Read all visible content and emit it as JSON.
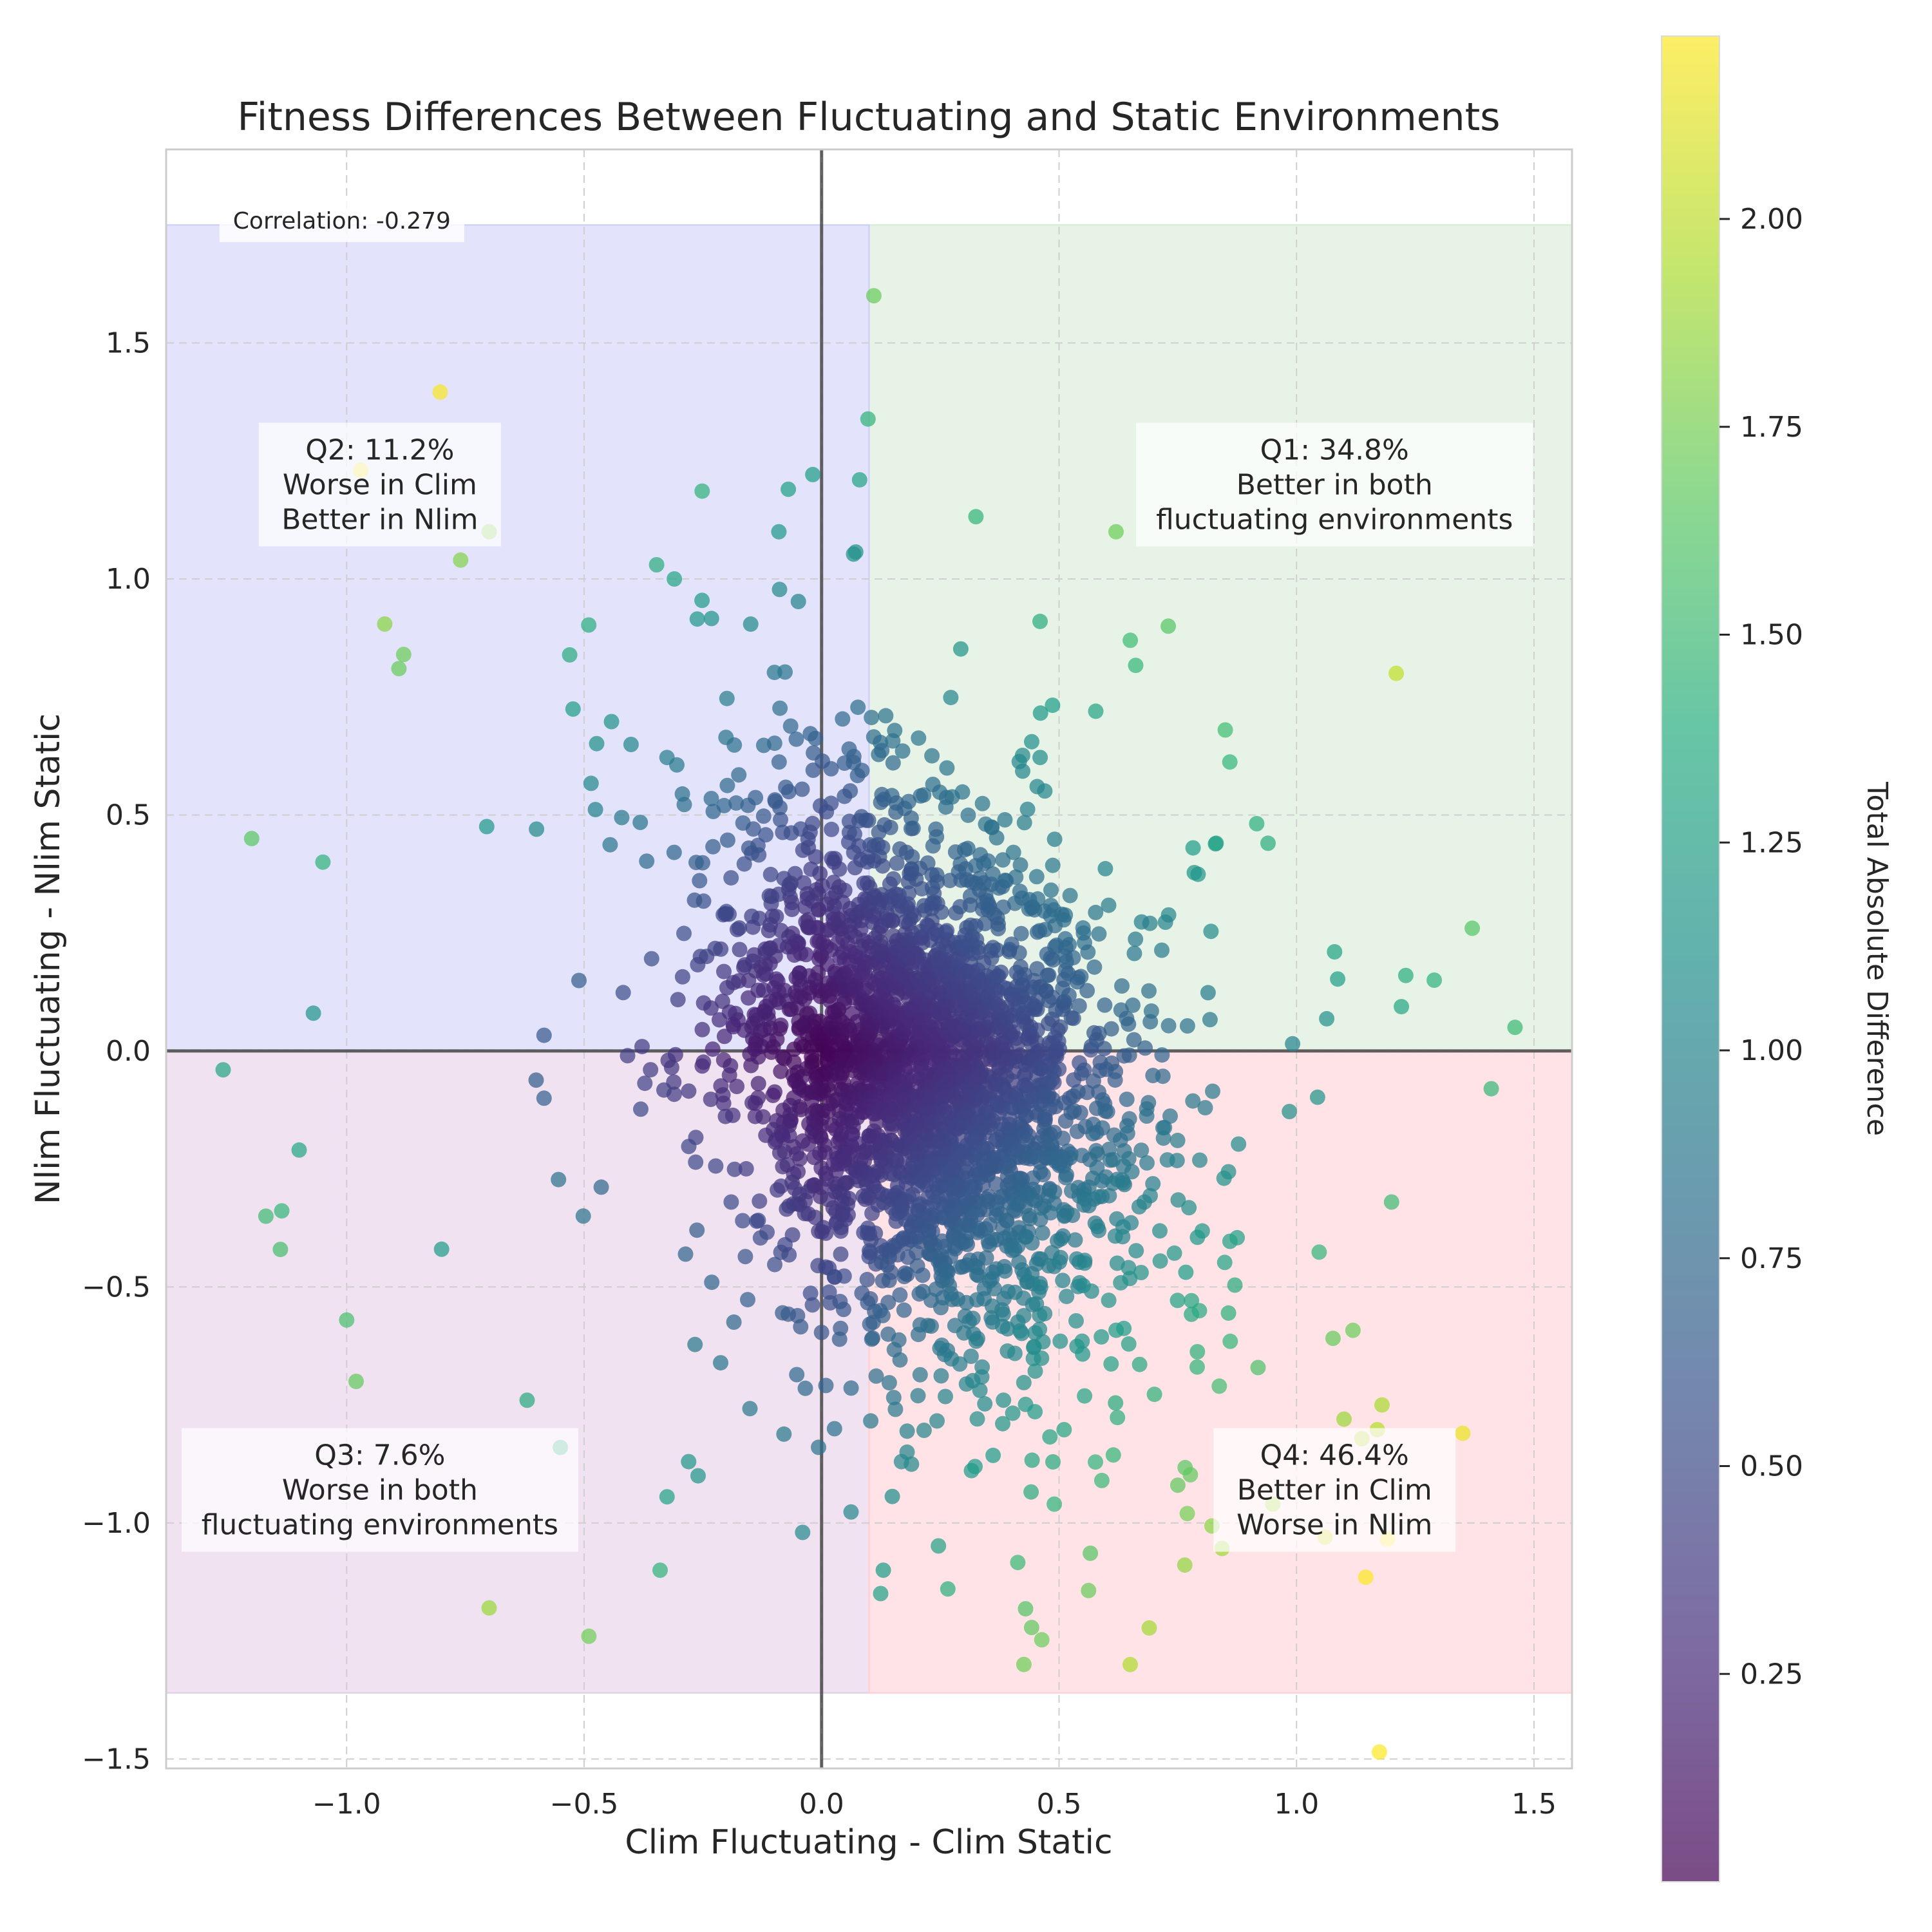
{
  "chart_data": {
    "type": "scatter",
    "title": "Fitness Differences Between Fluctuating and Static Environments",
    "xlabel": "Clim Fluctuating - Clim Static",
    "ylabel": "Nlim Fluctuating - Nlim Static",
    "xlim": [
      -1.38,
      1.58
    ],
    "ylim": [
      -1.52,
      1.91
    ],
    "xticks": [
      -1.0,
      -0.5,
      0.0,
      0.5,
      1.0,
      1.5
    ],
    "xtick_labels": [
      "−1.0",
      "−0.5",
      "0.0",
      "0.5",
      "1.0",
      "1.5"
    ],
    "yticks": [
      -1.5,
      -1.0,
      -0.5,
      0.0,
      0.5,
      1.0,
      1.5
    ],
    "ytick_labels": [
      "−1.5",
      "−1.0",
      "−0.5",
      "0.0",
      "0.5",
      "1.0",
      "1.5"
    ],
    "grid": true,
    "colormap": "viridis",
    "colorbar": {
      "label": "Total Absolute Difference",
      "range": [
        0.0,
        2.22
      ],
      "ticks": [
        0.25,
        0.5,
        0.75,
        1.0,
        1.25,
        1.5,
        1.75,
        2.0
      ],
      "tick_labels": [
        "0.25",
        "0.50",
        "0.75",
        "1.00",
        "1.25",
        "1.50",
        "1.75",
        "2.00"
      ]
    },
    "regions": [
      {
        "name": "Q1",
        "x": [
          0.1,
          1.58
        ],
        "y": [
          0.0,
          1.75
        ],
        "color": "#d3ead3"
      },
      {
        "name": "Q2",
        "x": [
          -1.38,
          0.1
        ],
        "y": [
          0.0,
          1.75
        ],
        "color": "#ccccf9"
      },
      {
        "name": "Q3",
        "x": [
          -1.38,
          0.1
        ],
        "y": [
          -1.36,
          0.0
        ],
        "color": "#e3cbe5"
      },
      {
        "name": "Q4",
        "x": [
          0.1,
          1.58
        ],
        "y": [
          -1.36,
          0.0
        ],
        "color": "#ffccd2"
      }
    ],
    "annotations": [
      {
        "id": "q1",
        "lines": [
          "Q1: 34.8%",
          "Better in both",
          "fluctuating environments"
        ],
        "x": 1.08,
        "y": 1.2
      },
      {
        "id": "q2",
        "lines": [
          "Q2: 11.2%",
          "Worse in Clim",
          "Better in Nlim"
        ],
        "x": -0.93,
        "y": 1.2
      },
      {
        "id": "q3",
        "lines": [
          "Q3: 7.6%",
          "Worse in both",
          "fluctuating environments"
        ],
        "x": -0.93,
        "y": -0.93
      },
      {
        "id": "q4",
        "lines": [
          "Q4: 46.4%",
          "Better in Clim",
          "Worse in Nlim"
        ],
        "x": 1.08,
        "y": -0.93
      }
    ],
    "correlation_label": "Correlation: -0.279",
    "correlation": -0.279,
    "point_count": 3000,
    "points_note": "Individual points are procedurally regenerated to match the visible distribution; notable outliers listed below.",
    "distribution": {
      "x_mean": 0.22,
      "y_mean": -0.05,
      "x_std": 0.2,
      "y_std": 0.27,
      "corr": -0.279
    },
    "outliers": [
      [
        0.11,
        1.6
      ],
      [
        0.08,
        1.21
      ],
      [
        -0.07,
        1.19
      ],
      [
        -0.09,
        1.1
      ],
      [
        -0.7,
        1.1
      ],
      [
        -0.76,
        1.04
      ],
      [
        -0.31,
        1.0
      ],
      [
        0.62,
        1.1
      ],
      [
        1.21,
        0.8
      ],
      [
        -1.2,
        0.45
      ],
      [
        -1.26,
        -0.04
      ],
      [
        -1.1,
        -0.21
      ],
      [
        -1.17,
        -0.35
      ],
      [
        -1.0,
        -0.57
      ],
      [
        -0.98,
        -0.7
      ],
      [
        -0.7,
        -1.18
      ],
      [
        -0.49,
        -1.24
      ],
      [
        -0.34,
        -1.1
      ],
      [
        -0.04,
        -1.02
      ],
      [
        0.13,
        -1.1
      ],
      [
        1.06,
        -1.03
      ],
      [
        1.35,
        -0.81
      ],
      [
        1.1,
        -0.78
      ],
      [
        1.18,
        -0.75
      ],
      [
        0.95,
        -0.96
      ],
      [
        0.77,
        -0.98
      ],
      [
        1.46,
        0.05
      ],
      [
        1.37,
        0.26
      ],
      [
        1.41,
        -0.08
      ],
      [
        1.29,
        0.15
      ],
      [
        -0.97,
        1.23
      ],
      [
        -0.88,
        0.84
      ],
      [
        -0.89,
        0.81
      ],
      [
        0.46,
        0.91
      ],
      [
        0.73,
        0.9
      ],
      [
        0.65,
        0.87
      ],
      [
        0.85,
        0.68
      ],
      [
        -1.05,
        0.4
      ],
      [
        -1.07,
        0.08
      ],
      [
        -0.8,
        -0.42
      ],
      [
        -0.62,
        -0.74
      ],
      [
        -0.55,
        -0.84
      ],
      [
        0.59,
        -0.91
      ],
      [
        0.75,
        -0.92
      ],
      [
        1.2,
        -0.32
      ],
      [
        0.94,
        0.44
      ],
      [
        1.08,
        0.21
      ],
      [
        1.23,
        0.16
      ],
      [
        -0.28,
        -0.87
      ],
      [
        -0.26,
        -0.9
      ],
      [
        0.18,
        -0.85
      ],
      [
        0.49,
        -0.96
      ]
    ]
  }
}
